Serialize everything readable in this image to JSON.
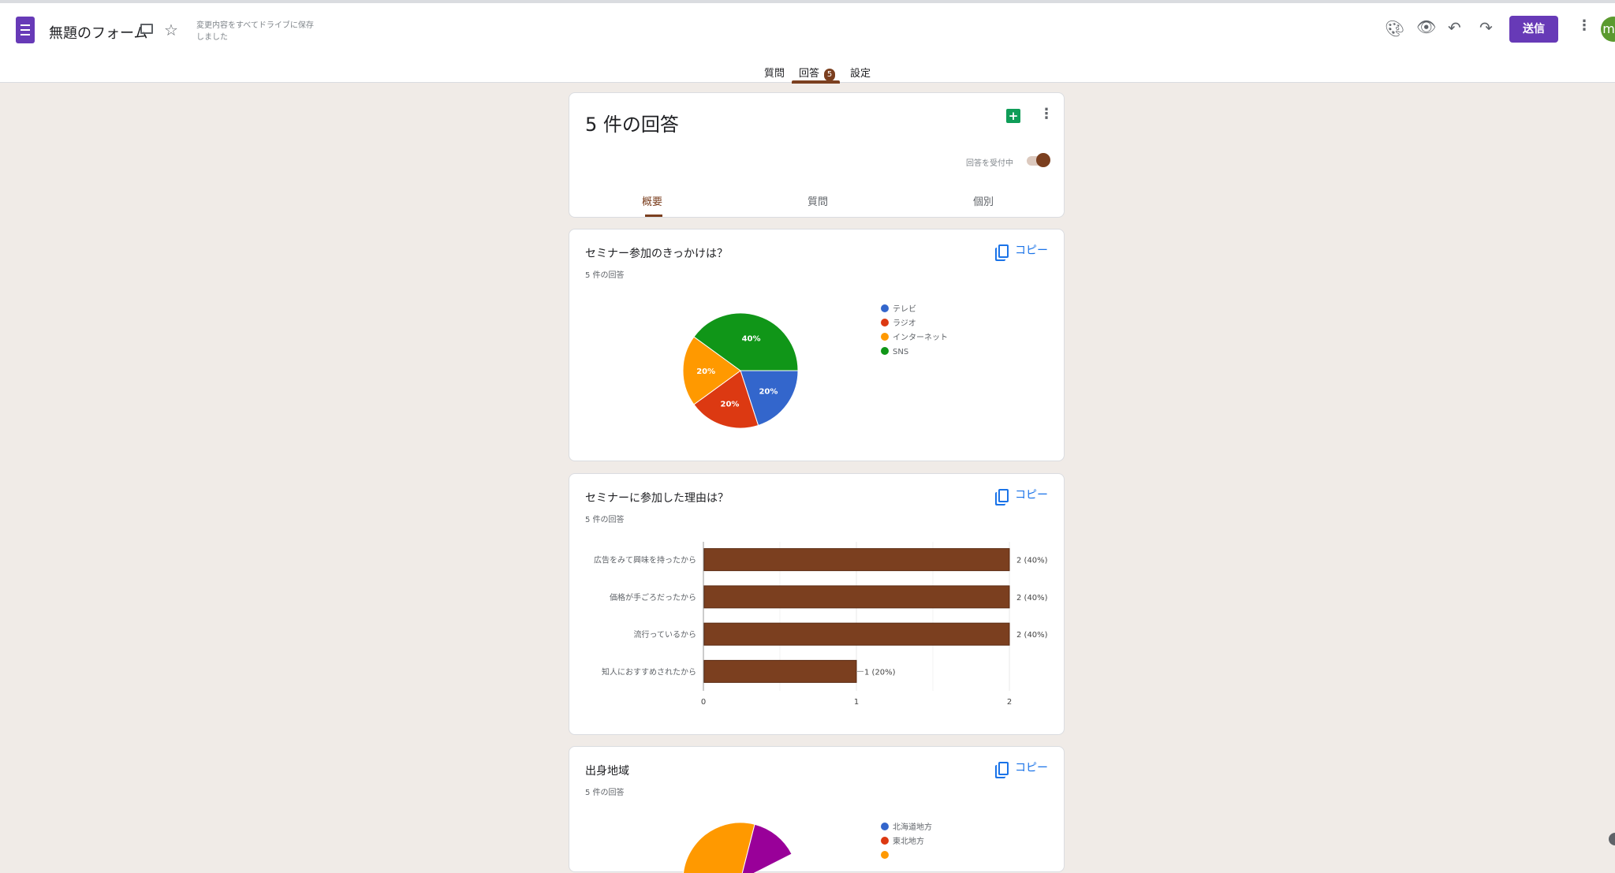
{
  "header": {
    "title": "無題のフォーム",
    "save_status": "変更内容をすべてドライブに保存しました",
    "send_label": "送信",
    "avatar_initial": "m",
    "icons": [
      "folder-icon",
      "star-icon",
      "palette-icon",
      "eye-icon",
      "undo-icon",
      "redo-icon",
      "more-vert-icon"
    ]
  },
  "tabs": {
    "questions": "質問",
    "responses": "回答",
    "responses_count": "5",
    "settings": "設定",
    "active": "responses"
  },
  "summary": {
    "title": "5 件の回答",
    "accepting_label": "回答を受付中",
    "accepting": true,
    "subtabs": [
      "概要",
      "質問",
      "個別"
    ],
    "active_subtab": "概要"
  },
  "colors": {
    "accent": "#7b3f1f",
    "brand": "#673ab7",
    "link": "#1a73e8"
  },
  "questions": [
    {
      "title": "セミナー参加のきっかけは？",
      "count": "5 件の回答",
      "copy_label": "コピー"
    },
    {
      "title": "セミナーに参加した理由は？",
      "count": "5 件の回答",
      "copy_label": "コピー"
    },
    {
      "title": "出身地域",
      "count": "5 件の回答",
      "copy_label": "コピー"
    }
  ],
  "chart_data": [
    {
      "type": "pie",
      "categories": [
        "テレビ",
        "ラジオ",
        "インターネット",
        "SNS"
      ],
      "values": [
        20,
        20,
        20,
        40
      ],
      "labels": [
        "20%",
        "20%",
        "20%",
        "40%"
      ],
      "colors": [
        "#3366cc",
        "#dc3912",
        "#ff9900",
        "#109618"
      ],
      "legend": "right"
    },
    {
      "type": "bar",
      "orientation": "horizontal",
      "categories": [
        "広告をみて興味を持ったから",
        "価格が手ごろだったから",
        "流行っているから",
        "知人におすすめされたから"
      ],
      "values": [
        2,
        2,
        2,
        1
      ],
      "data_labels": [
        "2 (40%)",
        "2 (40%)",
        "2 (40%)",
        "1 (20%)"
      ],
      "xlim": [
        0,
        2
      ],
      "x_ticks": [
        "0",
        "1",
        "2"
      ],
      "color": "#7b3f1f",
      "grid": true
    },
    {
      "type": "pie",
      "categories": [
        "北海道地方",
        "東北地方"
      ],
      "colors": [
        "#3366cc",
        "#dc3912",
        "#ff9900",
        "#990099"
      ],
      "legend": "right"
    }
  ]
}
